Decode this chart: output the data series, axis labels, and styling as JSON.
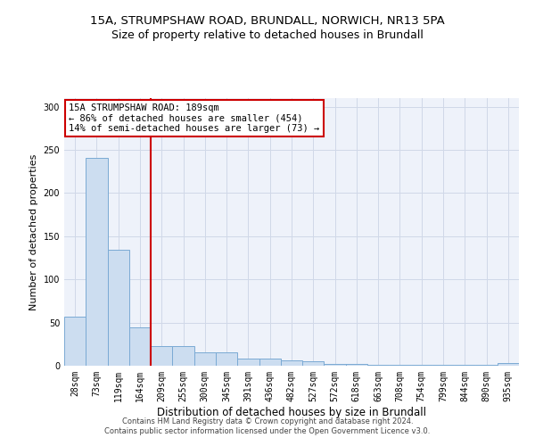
{
  "title1": "15A, STRUMPSHAW ROAD, BRUNDALL, NORWICH, NR13 5PA",
  "title2": "Size of property relative to detached houses in Brundall",
  "xlabel": "Distribution of detached houses by size in Brundall",
  "ylabel": "Number of detached properties",
  "categories": [
    "28sqm",
    "73sqm",
    "119sqm",
    "164sqm",
    "209sqm",
    "255sqm",
    "300sqm",
    "345sqm",
    "391sqm",
    "436sqm",
    "482sqm",
    "527sqm",
    "572sqm",
    "618sqm",
    "663sqm",
    "708sqm",
    "754sqm",
    "799sqm",
    "844sqm",
    "890sqm",
    "935sqm"
  ],
  "values": [
    57,
    241,
    134,
    44,
    23,
    23,
    16,
    16,
    8,
    8,
    6,
    5,
    2,
    2,
    1,
    1,
    1,
    1,
    1,
    1,
    3
  ],
  "bar_color": "#ccddf0",
  "bar_edge_color": "#7aaad4",
  "vline_x": 3.5,
  "vline_color": "#cc0000",
  "annotation_text": "15A STRUMPSHAW ROAD: 189sqm\n← 86% of detached houses are smaller (454)\n14% of semi-detached houses are larger (73) →",
  "annotation_box_color": "#ffffff",
  "annotation_box_edge": "#cc0000",
  "ylim": [
    0,
    310
  ],
  "yticks": [
    0,
    50,
    100,
    150,
    200,
    250,
    300
  ],
  "grid_color": "#d0d8e8",
  "background_color": "#eef2fa",
  "footer1": "Contains HM Land Registry data © Crown copyright and database right 2024.",
  "footer2": "Contains public sector information licensed under the Open Government Licence v3.0.",
  "title1_fontsize": 9.5,
  "title2_fontsize": 9,
  "tick_fontsize": 7,
  "ylabel_fontsize": 8,
  "xlabel_fontsize": 8.5,
  "annotation_fontsize": 7.5,
  "footer_fontsize": 6
}
